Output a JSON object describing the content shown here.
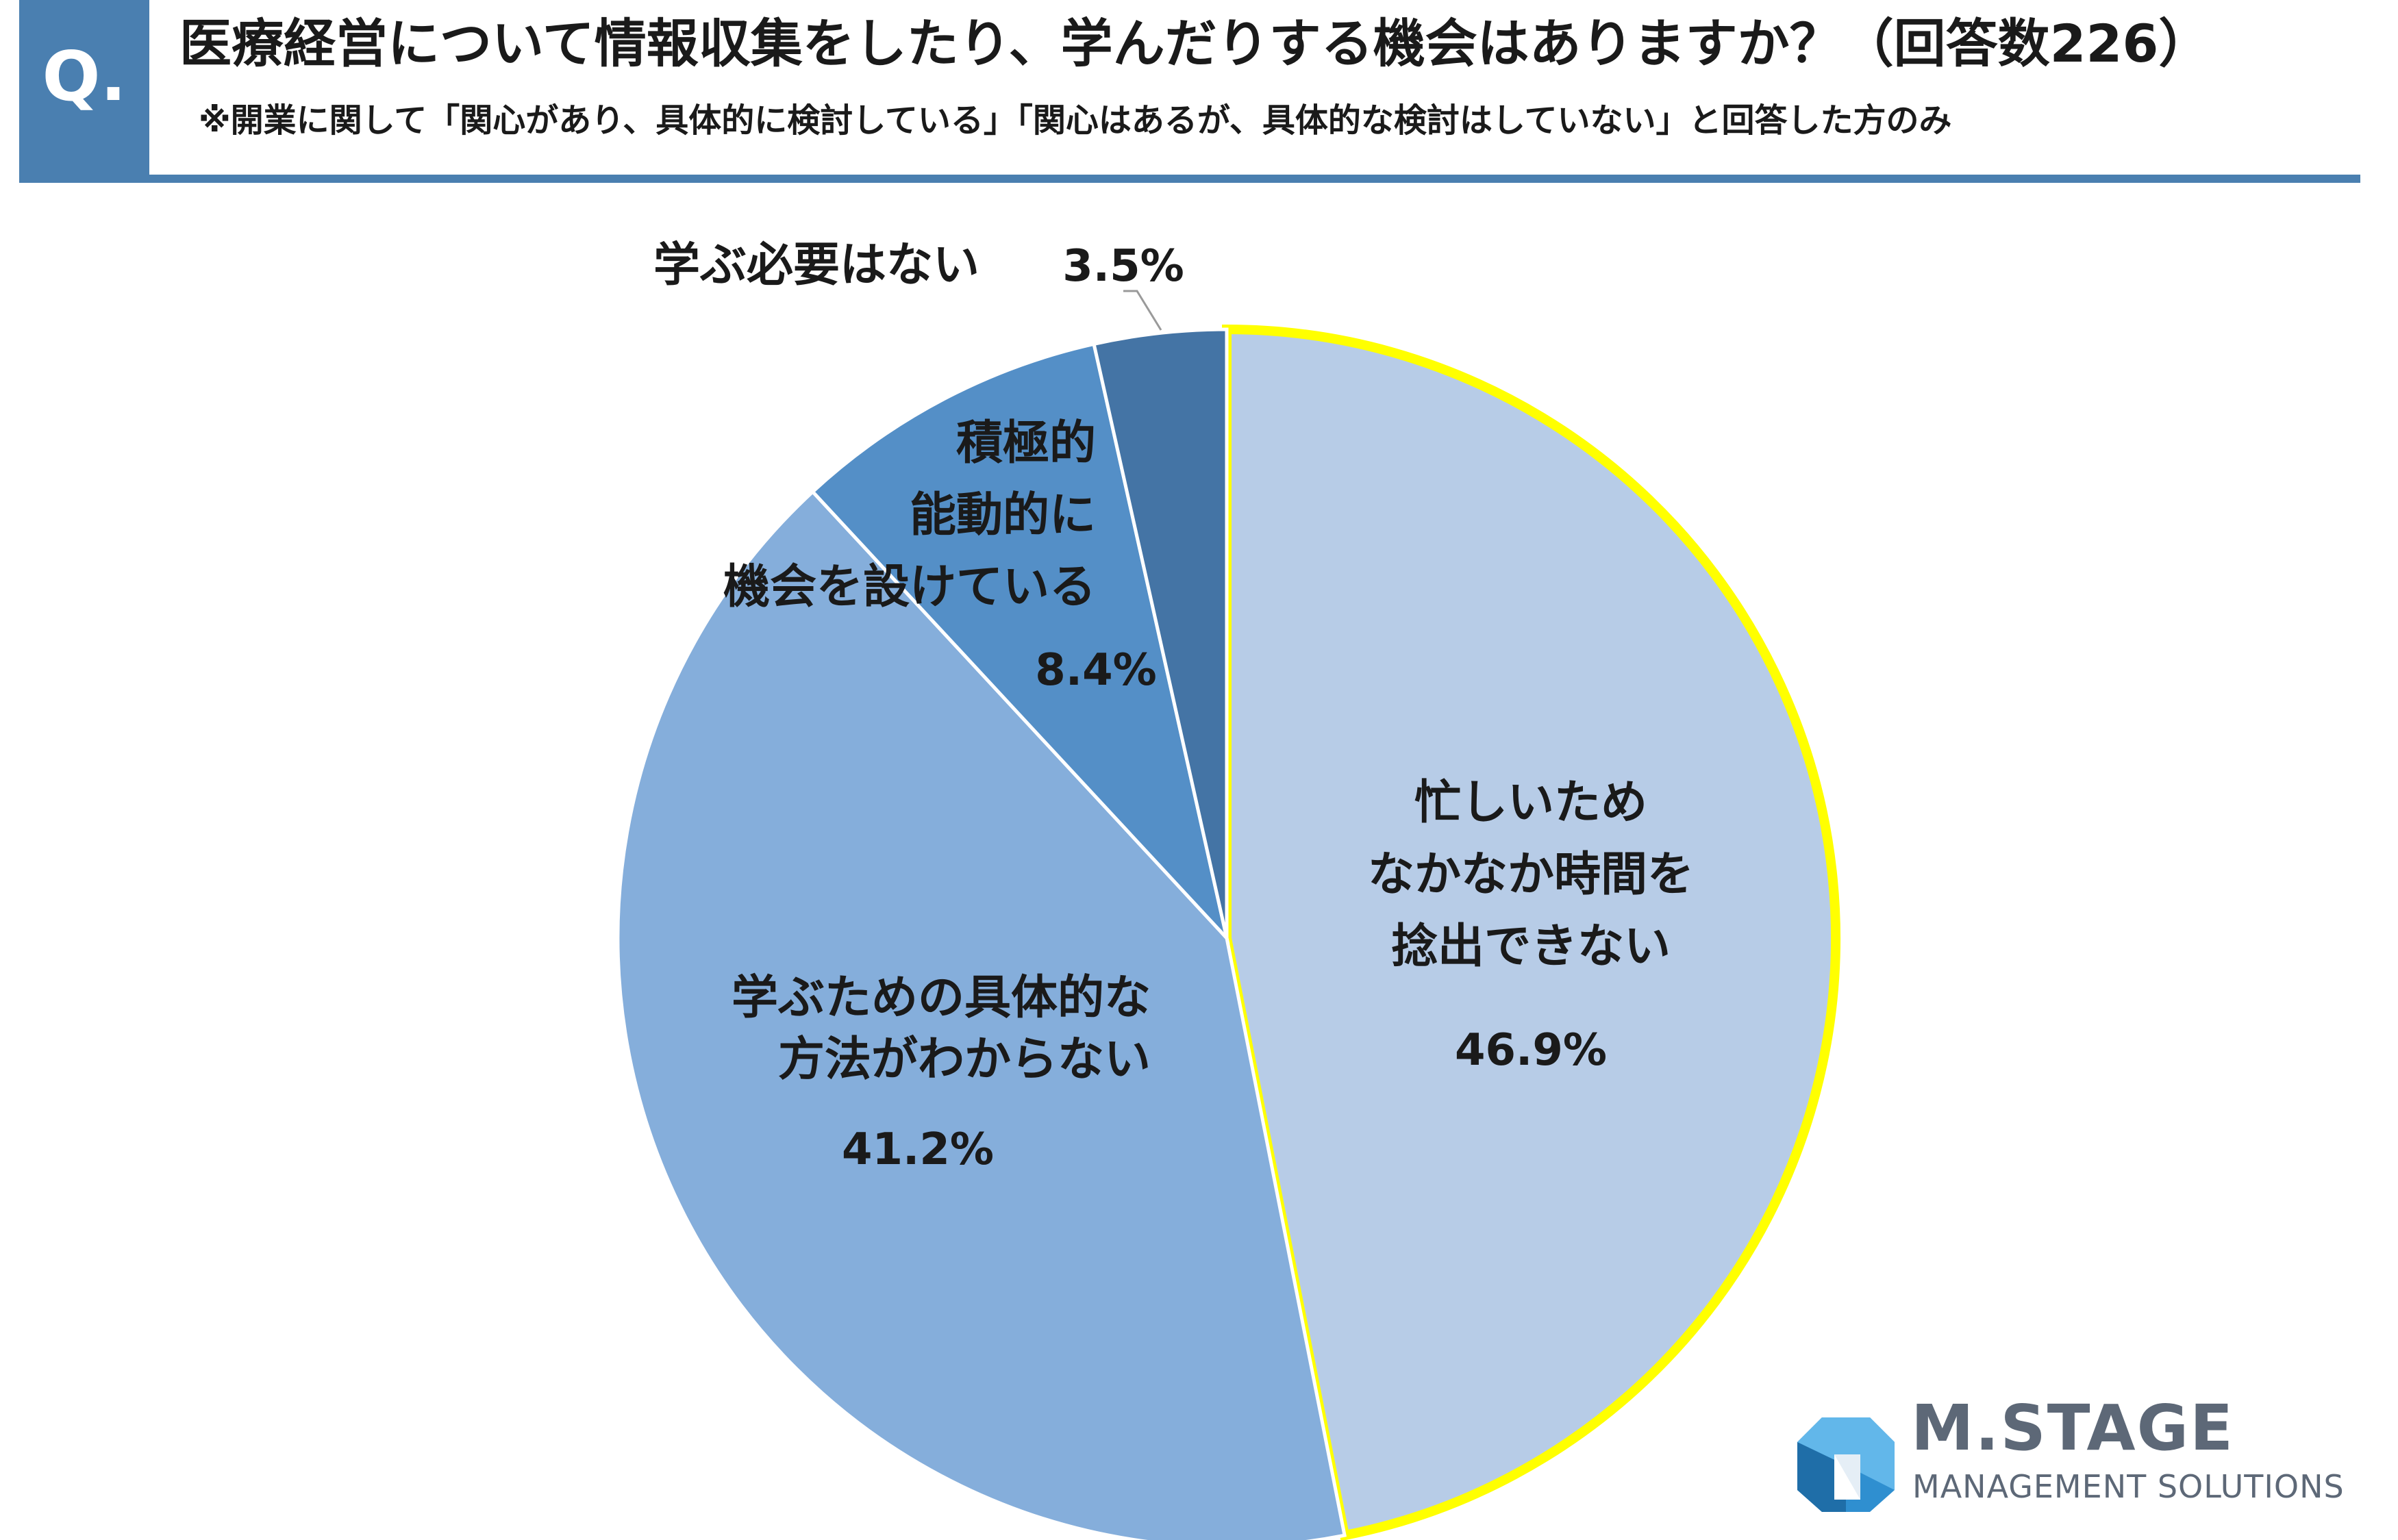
{
  "header": {
    "q_label": "Q.",
    "title": "医療経営について情報収集をしたり、学んだりする機会はありますか？（回答数226）",
    "subtitle": "※開業に関して「関心があり、具体的に検討している」「関心はあるが、具体的な検討はしていない」と回答した方のみ"
  },
  "chart_data": {
    "type": "pie",
    "slices": [
      {
        "label_lines": [
          "忙しいため",
          "なかなか時間を",
          "捻出できない"
        ],
        "value": 46.9,
        "value_label": "46.9%",
        "color": "#b7cce7",
        "highlight": true
      },
      {
        "label_lines": [
          "学ぶための具体的な",
          "方法がわからない"
        ],
        "value": 41.2,
        "value_label": "41.2%",
        "color": "#85aedb"
      },
      {
        "label_lines": [
          "積極的",
          "能動的に",
          "機会を設けている"
        ],
        "value": 8.4,
        "value_label": "8.4%",
        "color": "#548fc7"
      },
      {
        "label_lines": [
          "学ぶ必要はない"
        ],
        "value": 3.5,
        "value_label": "3.5%",
        "color": "#4474a5"
      }
    ],
    "highlight_color": "#ffff00"
  },
  "logo": {
    "name": "M.STAGE",
    "tagline": "MANAGEMENT SOLUTIONS"
  }
}
